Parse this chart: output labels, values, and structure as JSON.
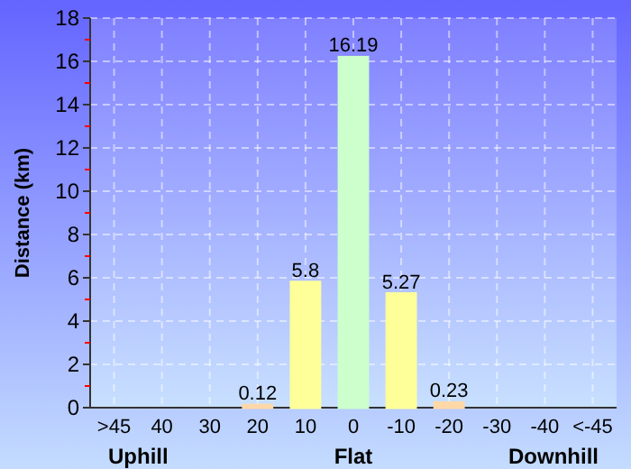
{
  "chart_data": {
    "type": "bar",
    "ylabel": "Distance (km)",
    "categories": [
      ">45",
      "40",
      "30",
      "20",
      "10",
      "0",
      "-10",
      "-20",
      "-30",
      "-40",
      "<-45"
    ],
    "values": [
      0,
      0,
      0,
      0.12,
      5.8,
      16.19,
      5.27,
      0.23,
      0,
      0,
      0
    ],
    "value_labels": [
      null,
      null,
      null,
      "0.12",
      "5.8",
      "16.19",
      "5.27",
      "0.23",
      null,
      null,
      null
    ],
    "colors": [
      "#ff0000",
      "#ff8000",
      "#ff8000",
      "#ffd8a8",
      "#ffff99",
      "#ccffcc",
      "#ffff99",
      "#ffd8a8",
      "#ff8000",
      "#ff8000",
      "#ff0000"
    ],
    "ylim": [
      0,
      18
    ],
    "yticks": [
      0,
      2,
      4,
      6,
      8,
      10,
      12,
      14,
      16,
      18
    ],
    "grid": true,
    "annotations": [
      "Uphill",
      "Flat",
      "Downhill"
    ]
  }
}
